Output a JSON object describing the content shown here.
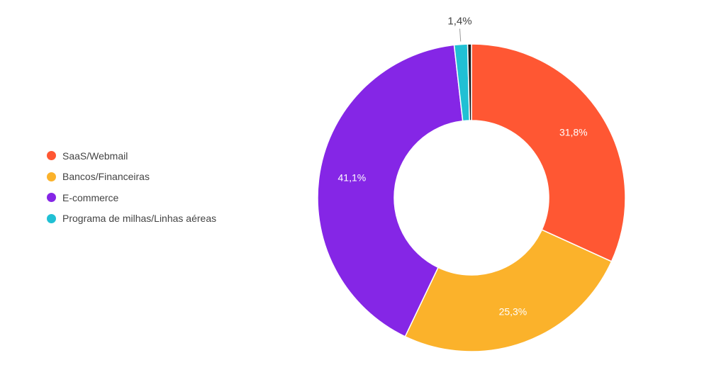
{
  "chart_data": {
    "type": "pie",
    "variant": "donut",
    "legend_position": "left",
    "series": [
      {
        "name": "SaaS/Webmail",
        "value": 31.8,
        "label": "31,8%",
        "color": "#FF5733"
      },
      {
        "name": "Bancos/Financeiras",
        "value": 25.3,
        "label": "25,3%",
        "color": "#FBB22B"
      },
      {
        "name": "E-commerce",
        "value": 41.1,
        "label": "41,1%",
        "color": "#8526E6"
      },
      {
        "name": "Programa de milhas/Linhas aéreas",
        "value": 1.4,
        "label": "1,4%",
        "color": "#20C0D4"
      },
      {
        "value": 0.4,
        "label": "",
        "color": "#1a1a1a"
      }
    ],
    "colors": {
      "label_inside": "#ffffff",
      "label_outside": "#444444",
      "legend_text": "#444444"
    }
  }
}
